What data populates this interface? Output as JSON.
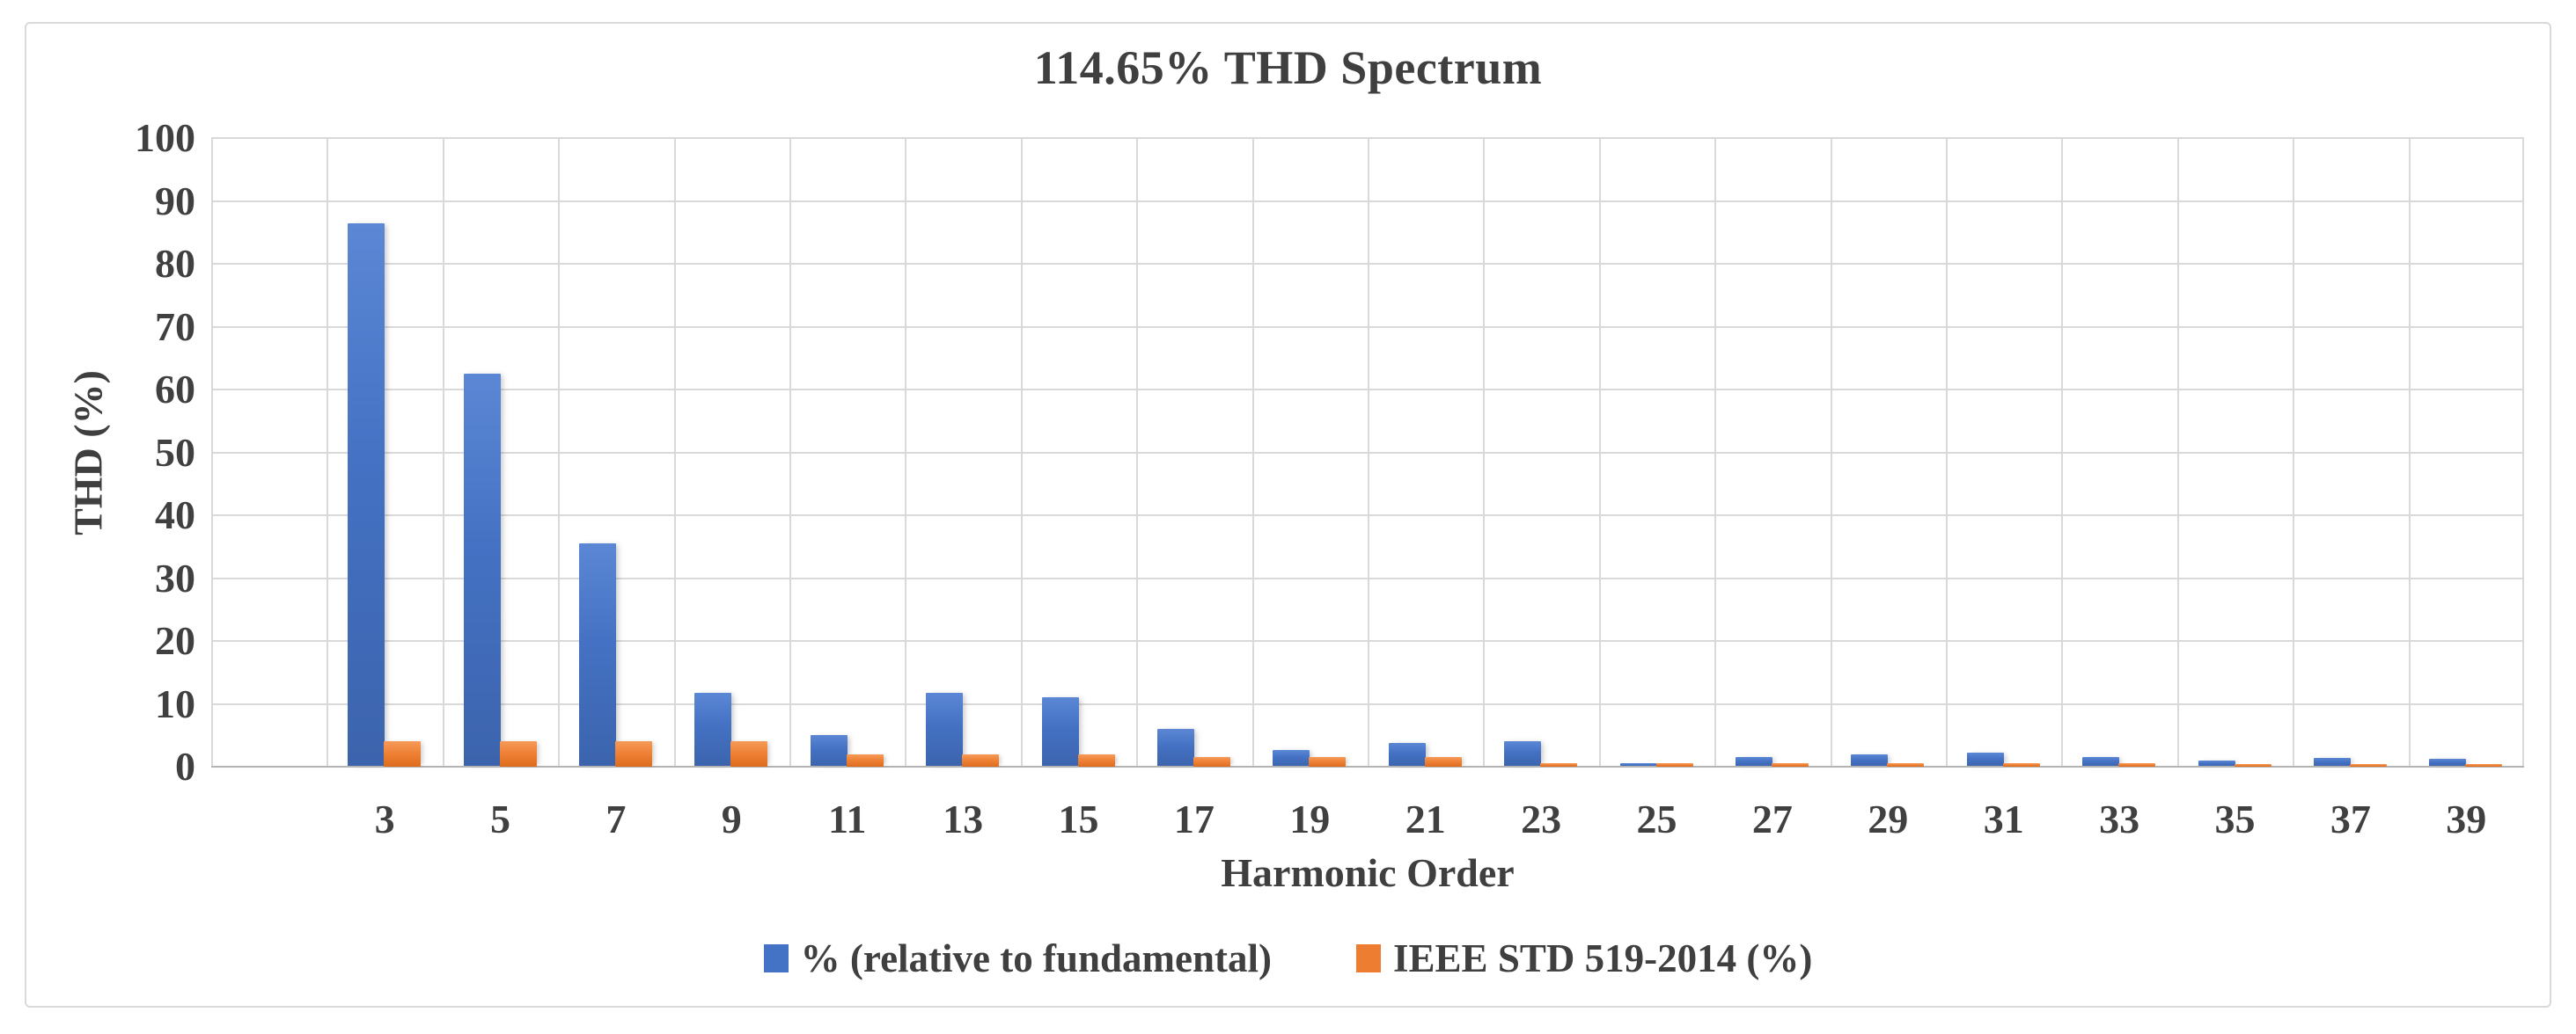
{
  "chart_data": {
    "type": "bar",
    "title": "114.65% THD Spectrum",
    "xlabel": "Harmonic Order",
    "ylabel": "THD (%)",
    "ylim": [
      0,
      100
    ],
    "yticks": [
      0,
      10,
      20,
      30,
      40,
      50,
      60,
      70,
      80,
      90,
      100
    ],
    "grid": true,
    "vertical_category_gridlines": true,
    "leading_empty_category_slot": true,
    "legend_position": "bottom",
    "categories": [
      "3",
      "5",
      "7",
      "9",
      "11",
      "13",
      "15",
      "17",
      "19",
      "21",
      "23",
      "25",
      "27",
      "29",
      "31",
      "33",
      "35",
      "37",
      "39"
    ],
    "series": [
      {
        "name": "% (relative to fundamental)",
        "color": "#4472C4",
        "values": [
          86.5,
          62.5,
          35.5,
          11.7,
          5.0,
          11.7,
          11.0,
          6.0,
          2.6,
          3.8,
          4.1,
          0.5,
          1.6,
          2.0,
          2.2,
          1.5,
          1.0,
          1.4,
          1.2
        ]
      },
      {
        "name": "IEEE STD 519-2014 (%)",
        "color": "#ED7D31",
        "values": [
          4,
          4,
          4,
          4,
          2,
          2,
          2,
          1.5,
          1.5,
          1.5,
          0.6,
          0.6,
          0.6,
          0.6,
          0.6,
          0.6,
          0.3,
          0.3,
          0.3
        ]
      }
    ]
  },
  "colors": {
    "title_text": "#3f3f3f",
    "axis_text": "#404040",
    "gridline": "#d9d9d9",
    "axis_line": "#b3b3b3",
    "frame_border": "#d9d9d9",
    "background": "#ffffff"
  }
}
